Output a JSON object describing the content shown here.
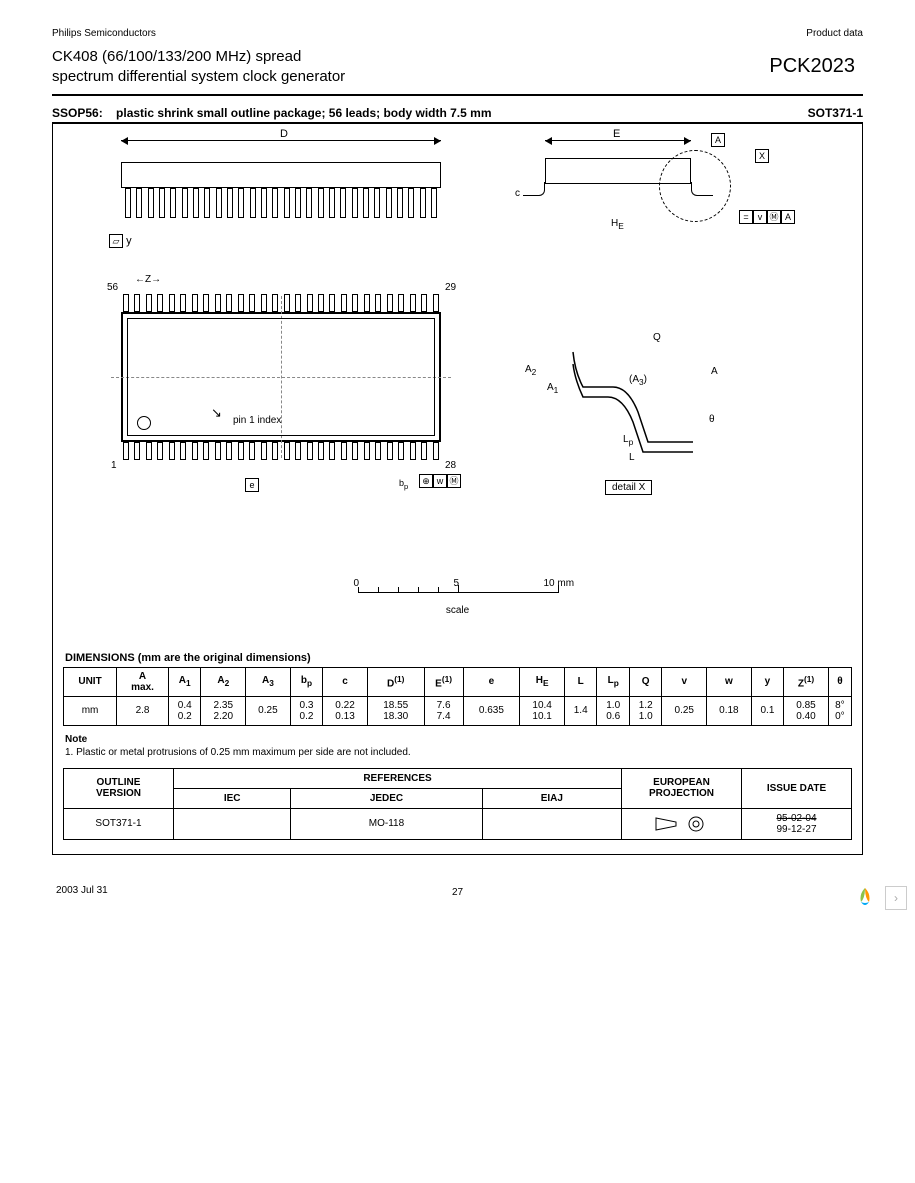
{
  "top": {
    "company": "Philips Semiconductors",
    "doctype": "Product data"
  },
  "header": {
    "title_l1": "CK408 (66/100/133/200 MHz) spread",
    "title_l2": "spectrum differential system clock generator",
    "part": "PCK2023"
  },
  "pkg_line": {
    "left": "SSOP56:",
    "mid": "plastic shrink small outline package; 56 leads; body width 7.5 mm",
    "right": "SOT371-1"
  },
  "diagram": {
    "D": "D",
    "E": "E",
    "A": "A",
    "X": "X",
    "y": "y",
    "c": "c",
    "HE": "H",
    "HE_sub": "E",
    "Z": "Z",
    "e": "e",
    "bp": "b",
    "bp_sub": "p",
    "w": "w",
    "M": "M",
    "v": "v",
    "pin56": "56",
    "pin29": "29",
    "pin1": "1",
    "pin28": "28",
    "pin1_label": "pin 1 index",
    "A2": "A",
    "A2s": "2",
    "A1": "A",
    "A1s": "1",
    "A3": "(A",
    "A3s": "3",
    "A3e": ")",
    "Q": "Q",
    "L": "L",
    "Lp": "L",
    "Lps": "p",
    "theta": "θ",
    "detail_x": "detail X",
    "scale": {
      "s0": "0",
      "s5": "5",
      "s10": "10 mm",
      "label": "scale"
    }
  },
  "dim_title": "DIMENSIONS (mm are the original dimensions)",
  "dim_table": {
    "headers": [
      "UNIT",
      "A\nmax.",
      "A₁",
      "A₂",
      "A₃",
      "bₚ",
      "c",
      "D⁽¹⁾",
      "E⁽¹⁾",
      "e",
      "Hₑ",
      "L",
      "Lₚ",
      "Q",
      "v",
      "w",
      "y",
      "Z⁽¹⁾",
      "θ"
    ],
    "unit": "mm",
    "row": [
      "2.8",
      {
        "t": "0.4",
        "b": "0.2"
      },
      {
        "t": "2.35",
        "b": "2.20"
      },
      "0.25",
      {
        "t": "0.3",
        "b": "0.2"
      },
      {
        "t": "0.22",
        "b": "0.13"
      },
      {
        "t": "18.55",
        "b": "18.30"
      },
      {
        "t": "7.6",
        "b": "7.4"
      },
      "0.635",
      {
        "t": "10.4",
        "b": "10.1"
      },
      "1.4",
      {
        "t": "1.0",
        "b": "0.6"
      },
      {
        "t": "1.2",
        "b": "1.0"
      },
      "0.25",
      "0.18",
      "0.1",
      {
        "t": "0.85",
        "b": "0.40"
      },
      {
        "t": "8°",
        "b": "0°"
      }
    ]
  },
  "note": {
    "header": "Note",
    "text": "1. Plastic or metal protrusions of 0.25 mm maximum per side are not included."
  },
  "ref_table": {
    "outline_hdr": "OUTLINE\nVERSION",
    "ref_hdr": "REFERENCES",
    "cols": [
      "IEC",
      "JEDEC",
      "EIAJ"
    ],
    "euro_hdr": "EUROPEAN\nPROJECTION",
    "issue_hdr": "ISSUE DATE",
    "outline_val": "SOT371-1",
    "iec": "",
    "jedec": "MO-118",
    "eiaj": "",
    "issue_old": "95-02-04",
    "issue_new": "99-12-27"
  },
  "footer": {
    "date": "2003 Jul 31",
    "page": "27"
  },
  "colors": {
    "text": "#000000",
    "border": "#000000",
    "dash": "#888888",
    "nav_border": "#cccccc",
    "nav_caret": "#aaaaaa"
  }
}
